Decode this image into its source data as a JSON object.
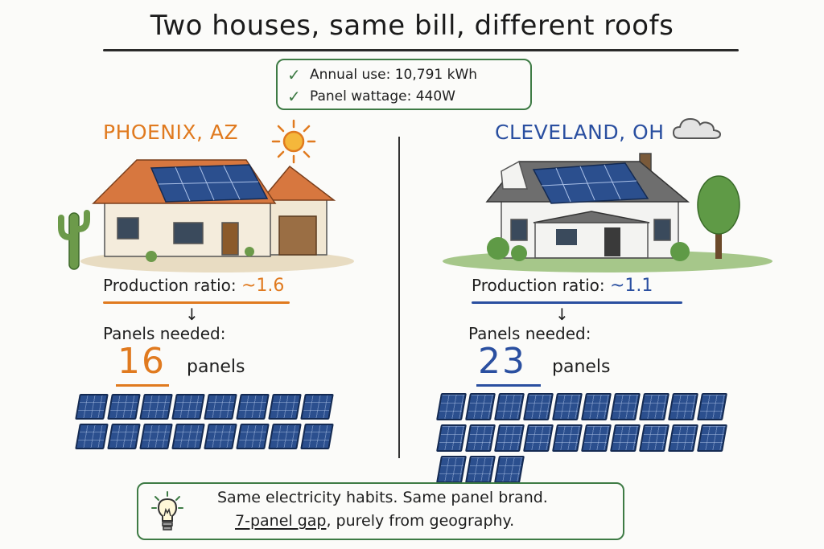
{
  "title": "Two houses, same bill, different roofs",
  "facts": [
    {
      "label": "Annual use: 10,791 kWh"
    },
    {
      "label": "Panel wattage: 440W"
    }
  ],
  "left": {
    "city": "PHOENIX, AZ",
    "ratio_label": "Production ratio: ",
    "ratio_value": "~1.6",
    "arrow": "↓",
    "needed_label": "Panels needed:",
    "count": "16",
    "unit": "panels",
    "panel_count": 16,
    "accent": "#e07a1f"
  },
  "right": {
    "city": "CLEVELAND, OH",
    "ratio_label": "Production ratio: ",
    "ratio_value": "~1.1",
    "arrow": "↓",
    "needed_label": "Panels needed:",
    "count": "23",
    "unit": "panels",
    "panel_count": 23,
    "accent": "#2a4fa0"
  },
  "note": {
    "line1": "Same electricity habits. Same panel brand.",
    "line2_emph": "7-panel gap",
    "line2_rest": ", purely from geography."
  },
  "icons": [
    "check-icon",
    "sun-icon",
    "cloud-icon",
    "lightbulb-icon",
    "house-illustration",
    "cactus-illustration",
    "tree-illustration"
  ]
}
